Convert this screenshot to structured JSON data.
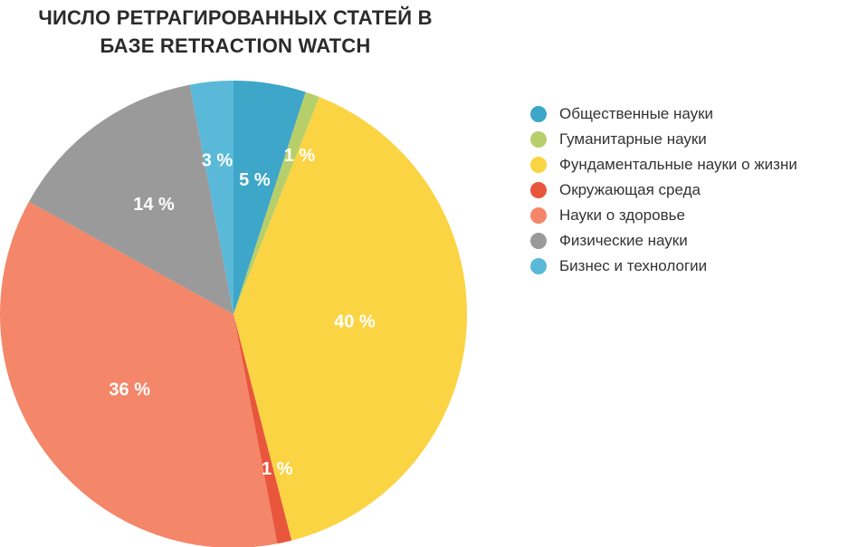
{
  "chart_data": {
    "type": "pie",
    "title_lines": [
      "ЧИСЛО РЕТРАГИРОВАННЫХ СТАТЕЙ В",
      "БАЗЕ RETRACTION WATCH"
    ],
    "slices": [
      {
        "label": "Общественные науки",
        "value": 5,
        "value_label": "5 %",
        "color": "#3ea6c8"
      },
      {
        "label": "Гуманитарные науки",
        "value": 1,
        "value_label": "1 %",
        "color": "#b7cf6a"
      },
      {
        "label": "Фундаментальные науки о жизни",
        "value": 40,
        "value_label": "40 %",
        "color": "#fbd444"
      },
      {
        "label": "Окружающая среда",
        "value": 1,
        "value_label": "1 %",
        "color": "#e8563c"
      },
      {
        "label": "Науки о здоровье",
        "value": 36,
        "value_label": "36 %",
        "color": "#f48669"
      },
      {
        "label": "Физические науки",
        "value": 14,
        "value_label": "14 %",
        "color": "#9a9a9a"
      },
      {
        "label": "Бизнес и технологии",
        "value": 3,
        "value_label": "3 %",
        "color": "#5ab9d9"
      }
    ],
    "legend_position": "right",
    "start": "top, clockwise"
  }
}
